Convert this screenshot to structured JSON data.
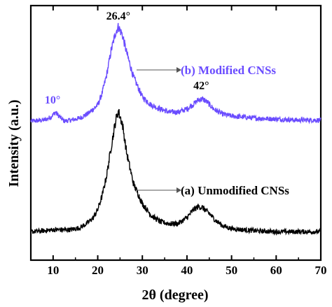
{
  "chart_data": {
    "type": "line",
    "xlabel": "2θ (degree)",
    "ylabel": "Intensity (a.u.)",
    "xlim": [
      5,
      70
    ],
    "xticks": [
      "10",
      "20",
      "30",
      "40",
      "50",
      "60",
      "70"
    ],
    "yticks_shown": false,
    "grid": false,
    "series": [
      {
        "name": "(b) Modified CNSs",
        "color": "#6a4cff",
        "x": [
          5,
          8,
          9.5,
          10.5,
          11.5,
          12.5,
          14,
          16,
          18,
          20,
          21,
          22,
          23,
          24,
          24.6,
          25.5,
          26.5,
          28,
          30,
          32,
          34,
          36,
          38,
          40,
          41.5,
          42.5,
          43.5,
          44.5,
          46,
          48,
          50,
          55,
          60,
          65,
          70
        ],
        "y": [
          0.58,
          0.585,
          0.6,
          0.625,
          0.6,
          0.58,
          0.585,
          0.595,
          0.62,
          0.66,
          0.72,
          0.81,
          0.93,
          1.02,
          1.05,
          1.01,
          0.92,
          0.8,
          0.7,
          0.66,
          0.64,
          0.625,
          0.625,
          0.64,
          0.665,
          0.685,
          0.69,
          0.675,
          0.64,
          0.615,
          0.605,
          0.595,
          0.59,
          0.585,
          0.585
        ]
      },
      {
        "name": "(a) Unmodified CNSs",
        "color": "#000000",
        "x": [
          5,
          8,
          10,
          12,
          14,
          16,
          17.5,
          19,
          20,
          21,
          22,
          23,
          24,
          24.6,
          25.5,
          26.5,
          28,
          30,
          32,
          34,
          36,
          38,
          40,
          41.5,
          42.5,
          43.5,
          45,
          46.5,
          48,
          50,
          55,
          60,
          65,
          70
        ],
        "y": [
          0.03,
          0.035,
          0.04,
          0.04,
          0.04,
          0.05,
          0.07,
          0.1,
          0.14,
          0.21,
          0.31,
          0.45,
          0.58,
          0.63,
          0.57,
          0.42,
          0.27,
          0.17,
          0.11,
          0.08,
          0.07,
          0.07,
          0.1,
          0.14,
          0.155,
          0.15,
          0.12,
          0.085,
          0.06,
          0.045,
          0.035,
          0.03,
          0.03,
          0.03
        ]
      }
    ],
    "annotations": [
      {
        "text": "26.4°",
        "x": 24.6,
        "y": 1.05,
        "color": "#000000"
      },
      {
        "text": "42°",
        "x": 43.2,
        "y": 0.69,
        "color": "#000000"
      },
      {
        "text": "10°",
        "x": 10.5,
        "y": 0.625,
        "color": "#6a4cff"
      }
    ]
  }
}
